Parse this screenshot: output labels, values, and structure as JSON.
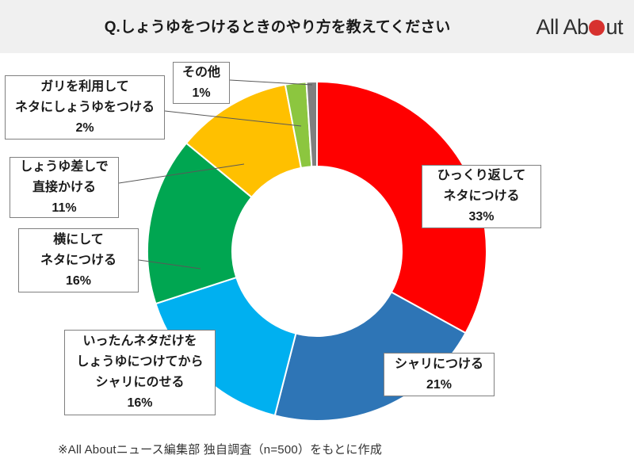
{
  "header": {
    "title": "Q.しょうゆをつけるときのやり方を教えてください",
    "logo": {
      "text_before": "All Ab",
      "text_after": "ut",
      "dot_color": "#d7312e"
    }
  },
  "chart_data": {
    "type": "pie",
    "subtype": "donut",
    "title": "Q.しょうゆをつけるときのやり方を教えてください",
    "labels": [
      "ひっくり返してネタにつける",
      "シャリにつける",
      "いったんネタだけをしょうゆにつけてからシャリにのせる",
      "横にしてネタにつける",
      "しょうゆ差しで直接かける",
      "ガリを利用してネタにしょうゆをつける",
      "その他"
    ],
    "values": [
      33,
      21,
      16,
      16,
      11,
      2,
      1
    ],
    "unit": "%",
    "colors": [
      "#ff0000",
      "#2e75b6",
      "#00b0f0",
      "#00a651",
      "#ffc000",
      "#8cc63f",
      "#7f7f7f"
    ],
    "start_angle_deg": 0,
    "direction": "clockwise",
    "inner_radius_ratio": 0.5,
    "legend_position": "callout-boxes",
    "source_note": "※All Aboutニュース編集部 独自調査（n=500）をもとに作成"
  },
  "callouts": {
    "hikkuri": {
      "lines": [
        "ひっくり返して",
        "ネタにつける",
        "33%"
      ]
    },
    "shari": {
      "lines": [
        "シャリにつける",
        "21%"
      ]
    },
    "ittan": {
      "lines": [
        "いったんネタだけを",
        "しょうゆにつけてから",
        "シャリにのせる",
        "16%"
      ]
    },
    "yoko": {
      "lines": [
        "横にして",
        "ネタにつける",
        "16%"
      ]
    },
    "sashi": {
      "lines": [
        "しょうゆ差しで",
        "直接かける",
        "11%"
      ]
    },
    "gari": {
      "lines": [
        "ガリを利用して",
        "ネタにしょうゆをつける",
        "2%"
      ]
    },
    "sonota": {
      "lines": [
        "その他",
        "1%"
      ]
    }
  },
  "footer": {
    "note": "※All Aboutニュース編集部 独自調査（n=500）をもとに作成"
  }
}
